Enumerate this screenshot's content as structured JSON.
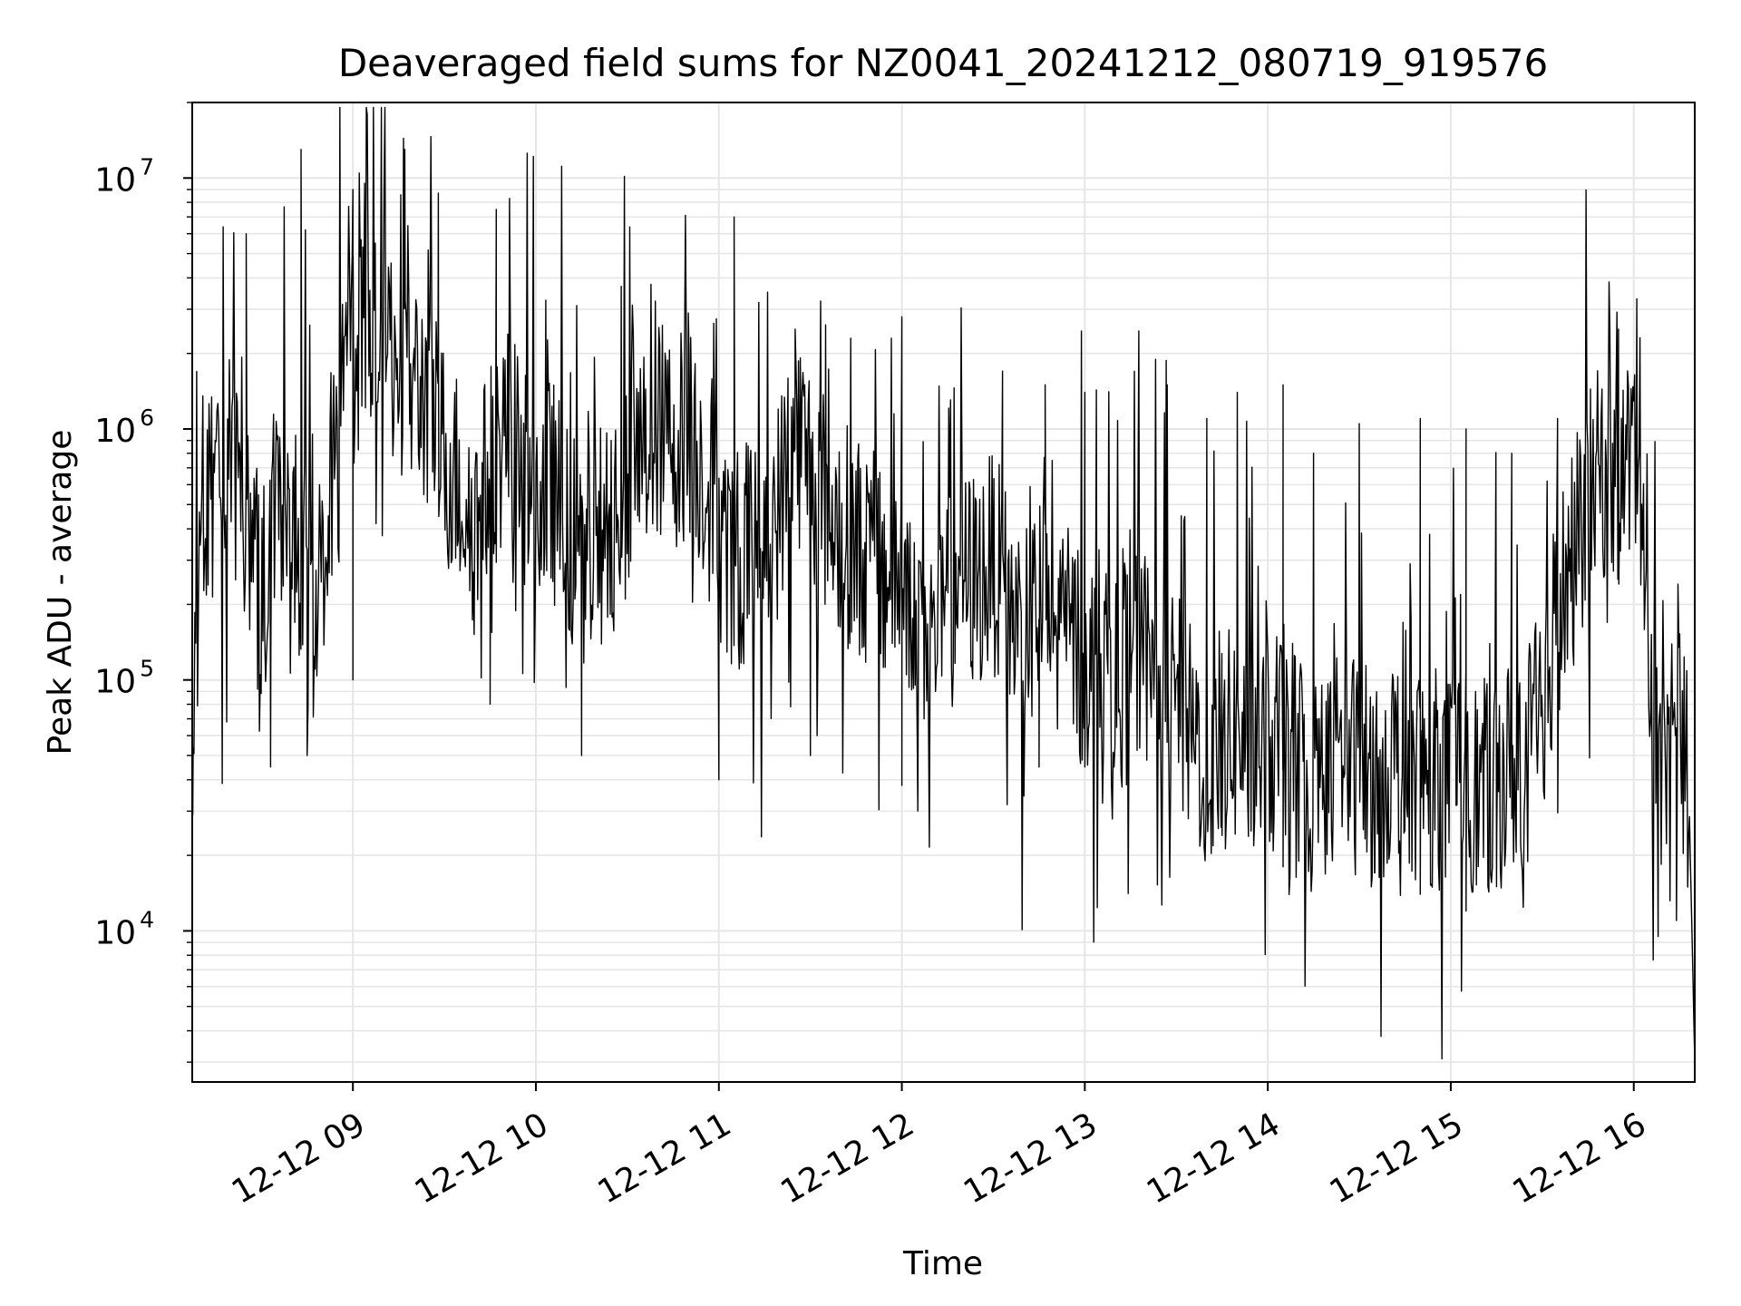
{
  "chart_data": {
    "type": "line",
    "title": "Deaveraged field sums for NZ0041_20241212_080719_919576",
    "xlabel": "Time",
    "ylabel": "Peak ADU - average",
    "yscale": "log",
    "xlim": [
      "2024-12-12 08:07:19",
      "2024-12-12 16:20:00"
    ],
    "ylim": [
      2500,
      20000000
    ],
    "xticks": [
      {
        "t": "2024-12-12 09:00",
        "label": "12-12 09"
      },
      {
        "t": "2024-12-12 10:00",
        "label": "12-12 10"
      },
      {
        "t": "2024-12-12 11:00",
        "label": "12-12 11"
      },
      {
        "t": "2024-12-12 12:00",
        "label": "12-12 12"
      },
      {
        "t": "2024-12-12 13:00",
        "label": "12-12 13"
      },
      {
        "t": "2024-12-12 14:00",
        "label": "12-12 14"
      },
      {
        "t": "2024-12-12 15:00",
        "label": "12-12 15"
      },
      {
        "t": "2024-12-12 16:00",
        "label": "12-12 16"
      }
    ],
    "yticks": [
      {
        "value": 10000,
        "base": "10",
        "exp": "4"
      },
      {
        "value": 100000,
        "base": "10",
        "exp": "5"
      },
      {
        "value": 1000000,
        "base": "10",
        "exp": "6"
      },
      {
        "value": 10000000,
        "base": "10",
        "exp": "7"
      }
    ],
    "grid": true,
    "line_color": "#000000",
    "grid_color": "#e6e6e6",
    "series": [
      {
        "x": [
          "2024-12-12 08:07:19",
          "2024-12-12 08:10",
          "2024-12-12 08:15",
          "2024-12-12 08:20",
          "2024-12-12 08:25",
          "2024-12-12 08:30",
          "2024-12-12 08:35",
          "2024-12-12 08:40",
          "2024-12-12 08:45",
          "2024-12-12 08:50",
          "2024-12-12 08:55",
          "2024-12-12 09:00",
          "2024-12-12 09:05",
          "2024-12-12 09:10",
          "2024-12-12 09:15",
          "2024-12-12 09:20",
          "2024-12-12 09:25",
          "2024-12-12 09:30",
          "2024-12-12 09:35",
          "2024-12-12 09:40",
          "2024-12-12 09:45",
          "2024-12-12 09:50",
          "2024-12-12 09:55",
          "2024-12-12 10:00",
          "2024-12-12 10:05",
          "2024-12-12 10:10",
          "2024-12-12 10:15",
          "2024-12-12 10:20",
          "2024-12-12 10:25",
          "2024-12-12 10:30",
          "2024-12-12 10:35",
          "2024-12-12 10:40",
          "2024-12-12 10:45",
          "2024-12-12 10:50",
          "2024-12-12 10:55",
          "2024-12-12 11:00",
          "2024-12-12 11:05",
          "2024-12-12 11:10",
          "2024-12-12 11:15",
          "2024-12-12 11:20",
          "2024-12-12 11:25",
          "2024-12-12 11:30",
          "2024-12-12 11:35",
          "2024-12-12 11:40",
          "2024-12-12 11:45",
          "2024-12-12 11:50",
          "2024-12-12 11:55",
          "2024-12-12 12:00",
          "2024-12-12 12:05",
          "2024-12-12 12:10",
          "2024-12-12 12:15",
          "2024-12-12 12:20",
          "2024-12-12 12:25",
          "2024-12-12 12:30",
          "2024-12-12 12:35",
          "2024-12-12 12:40",
          "2024-12-12 12:45",
          "2024-12-12 12:50",
          "2024-12-12 12:55",
          "2024-12-12 13:00",
          "2024-12-12 13:05",
          "2024-12-12 13:10",
          "2024-12-12 13:15",
          "2024-12-12 13:20",
          "2024-12-12 13:25",
          "2024-12-12 13:30",
          "2024-12-12 13:35",
          "2024-12-12 13:40",
          "2024-12-12 13:45",
          "2024-12-12 13:50",
          "2024-12-12 13:55",
          "2024-12-12 14:00",
          "2024-12-12 14:05",
          "2024-12-12 14:10",
          "2024-12-12 14:15",
          "2024-12-12 14:20",
          "2024-12-12 14:25",
          "2024-12-12 14:30",
          "2024-12-12 14:35",
          "2024-12-12 14:40",
          "2024-12-12 14:45",
          "2024-12-12 14:50",
          "2024-12-12 14:55",
          "2024-12-12 15:00",
          "2024-12-12 15:05",
          "2024-12-12 15:10",
          "2024-12-12 15:15",
          "2024-12-12 15:20",
          "2024-12-12 15:25",
          "2024-12-12 15:30",
          "2024-12-12 15:35",
          "2024-12-12 15:40",
          "2024-12-12 15:45",
          "2024-12-12 15:50",
          "2024-12-12 15:55",
          "2024-12-12 16:00",
          "2024-12-12 16:03",
          "2024-12-12 16:06",
          "2024-12-12 16:09",
          "2024-12-12 16:12",
          "2024-12-12 16:15",
          "2024-12-12 16:18",
          "2024-12-12 16:20"
        ],
        "y": [
          30000,
          500000,
          550000,
          600000,
          450000,
          200000,
          500000,
          250000,
          450000,
          200000,
          1500000,
          2000000,
          3000000,
          2500000,
          1800000,
          1500000,
          1300000,
          800000,
          600000,
          400000,
          700000,
          1000000,
          700000,
          500000,
          600000,
          400000,
          300000,
          350000,
          500000,
          600000,
          800000,
          1000000,
          900000,
          1000000,
          700000,
          400000,
          300000,
          350000,
          400000,
          500000,
          1000000,
          700000,
          500000,
          400000,
          350000,
          300000,
          250000,
          300000,
          200000,
          150000,
          200000,
          250000,
          250000,
          300000,
          200000,
          150000,
          200000,
          150000,
          150000,
          120000,
          130000,
          100000,
          110000,
          120000,
          90000,
          80000,
          60000,
          50000,
          55000,
          60000,
          60000,
          50000,
          60000,
          50000,
          45000,
          45000,
          50000,
          45000,
          40000,
          50000,
          45000,
          45000,
          40000,
          40000,
          40000,
          35000,
          40000,
          45000,
          50000,
          80000,
          200000,
          300000,
          500000,
          700000,
          600000,
          800000,
          600000,
          80000,
          50000,
          60000,
          60000,
          40000,
          3000
        ],
        "peaks_x": [
          "2024-12-12 08:25",
          "2024-12-12 08:43",
          "2024-12-12 09:00",
          "2024-12-12 09:17",
          "2024-12-12 09:28",
          "2024-12-12 09:47",
          "2024-12-12 10:28",
          "2024-12-12 10:50",
          "2024-12-12 11:05",
          "2024-12-12 11:25",
          "2024-12-12 11:35",
          "2024-12-12 12:00",
          "2024-12-12 12:33",
          "2024-12-12 12:47",
          "2024-12-12 13:00",
          "2024-12-12 13:27",
          "2024-12-12 13:40",
          "2024-12-12 13:50",
          "2024-12-12 14:05",
          "2024-12-12 14:15",
          "2024-12-12 14:30",
          "2024-12-12 14:50",
          "2024-12-12 15:05",
          "2024-12-12 15:20",
          "2024-12-12 15:35",
          "2024-12-12 15:55",
          "2024-12-12 16:01"
        ],
        "peaks_y": [
          6000000,
          13000000,
          9000000,
          13000000,
          8700000,
          7500000,
          3700000,
          2900000,
          7000000,
          2500000,
          2600000,
          2800000,
          1700000,
          1500000,
          1400000,
          1500000,
          1100000,
          1400000,
          1500000,
          800000,
          1050000,
          1100000,
          1000000,
          800000,
          1100000,
          2500000,
          3300000
        ],
        "dips_x": [
          "2024-12-12 08:07:30",
          "2024-12-12 08:33",
          "2024-12-12 08:45",
          "2024-12-12 09:00",
          "2024-12-12 09:45",
          "2024-12-12 10:15",
          "2024-12-12 11:00",
          "2024-12-12 11:30",
          "2024-12-12 12:00",
          "2024-12-12 12:45",
          "2024-12-12 13:00",
          "2024-12-12 13:45",
          "2024-12-12 14:05",
          "2024-12-12 14:35",
          "2024-12-12 14:50",
          "2024-12-12 15:05",
          "2024-12-12 15:15",
          "2024-12-12 16:08",
          "2024-12-12 16:14"
        ],
        "dips_y": [
          29000,
          45000,
          50000,
          100000,
          80000,
          50000,
          40000,
          50000,
          38000,
          45000,
          45000,
          24000,
          18000,
          17000,
          14000,
          12000,
          15000,
          9500,
          11000
        ]
      }
    ]
  }
}
